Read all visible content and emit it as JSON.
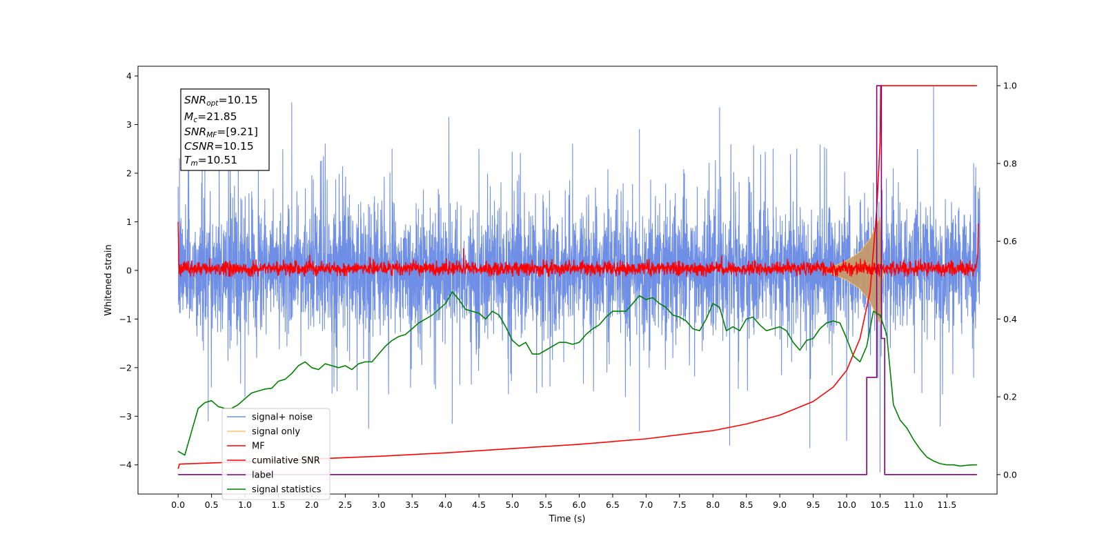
{
  "chart_data": {
    "type": "line",
    "title": "",
    "xlabel": "Time (s)",
    "ylabel": "Whitened strain",
    "xlim": [
      -0.6,
      12.25
    ],
    "ylim": [
      -4.6,
      4.2
    ],
    "y2lim": [
      -0.05,
      1.05
    ],
    "x_ticks": [
      "0.0",
      "0.5",
      "1.0",
      "1.5",
      "2.0",
      "2.5",
      "3.0",
      "3.5",
      "4.0",
      "4.5",
      "5.0",
      "5.5",
      "6.0",
      "6.5",
      "7.0",
      "7.5",
      "8.0",
      "8.5",
      "9.0",
      "9.5",
      "10.0",
      "10.5",
      "11.0",
      "11.5"
    ],
    "y_ticks": [
      "4",
      "3",
      "2",
      "1",
      "0",
      "−1",
      "−2",
      "−3",
      "−4"
    ],
    "y2_ticks": [
      "1.0",
      "0.8",
      "0.6",
      "0.4",
      "0.2",
      "0.0"
    ],
    "grid": false,
    "legend_position": "lower-left",
    "colors": {
      "signal_noise": "#6f8fe6",
      "signal_only": "#f5c469",
      "mf": "#ff0000",
      "cumulative_snr": "#ff0000",
      "label": "#800080",
      "signal_statistics": "#008000",
      "overlap_fill": "#c49a6c"
    },
    "legend": [
      "signal+ noise",
      "signal only",
      "MF",
      "cumilative SNR",
      "label",
      "signal statistics"
    ],
    "annotation": {
      "snr_opt": {
        "symbol": "SNR",
        "sub": "opt",
        "value": "=10.15"
      },
      "mc": {
        "symbol": "M",
        "sub": "c",
        "value": "=21.85"
      },
      "snr_mf": {
        "symbol": "SNR",
        "sub": "MF",
        "value": "=[9.21]"
      },
      "csnr": {
        "symbol": "CSNR",
        "sub": "",
        "value": "=10.15"
      },
      "tm": {
        "symbol": "T",
        "sub": "m",
        "value": "=10.51"
      }
    },
    "series": [
      {
        "name": "signal+ noise",
        "axis": "left",
        "note_shape": "dense noise band",
        "x_range": [
          0.0,
          12.0
        ],
        "band_typical": [
          -1.1,
          1.1
        ],
        "peaks_high": [
          [
            0.02,
            2.3
          ],
          [
            0.4,
            2.5
          ],
          [
            0.9,
            2.4
          ],
          [
            1.2,
            2.7
          ],
          [
            1.7,
            3.45
          ],
          [
            2.2,
            2.6
          ],
          [
            3.2,
            2.5
          ],
          [
            4.05,
            3.15
          ],
          [
            4.5,
            2.5
          ],
          [
            5.9,
            2.6
          ],
          [
            6.9,
            2.9
          ],
          [
            8.1,
            3.35
          ],
          [
            8.9,
            2.5
          ],
          [
            9.7,
            2.5
          ],
          [
            11.3,
            3.8
          ],
          [
            11.9,
            2.2
          ]
        ],
        "peaks_low": [
          [
            0.45,
            -3.1
          ],
          [
            1.0,
            -2.6
          ],
          [
            2.85,
            -3.25
          ],
          [
            4.1,
            -3.15
          ],
          [
            6.9,
            -3.3
          ],
          [
            8.25,
            -3.6
          ],
          [
            9.45,
            -3.65
          ],
          [
            10.0,
            -3.5
          ],
          [
            10.5,
            -4.15
          ],
          [
            11.4,
            -3.2
          ],
          [
            11.9,
            -2.2
          ]
        ]
      },
      {
        "name": "signal only",
        "axis": "left",
        "note_shape": "chirp envelope",
        "envelope": [
          [
            9.6,
            0.0
          ],
          [
            9.8,
            0.08
          ],
          [
            10.0,
            0.2
          ],
          [
            10.2,
            0.38
          ],
          [
            10.35,
            0.65
          ],
          [
            10.45,
            0.95
          ],
          [
            10.5,
            1.1
          ],
          [
            10.53,
            0.2
          ],
          [
            10.56,
            0.0
          ]
        ]
      },
      {
        "name": "MF",
        "axis": "left",
        "note_shape": "noisy band near zero",
        "band_typical": [
          -0.12,
          0.2
        ],
        "start_value": 1.0,
        "end_value": 0.97,
        "spikes": [
          [
            4.27,
            0.45
          ],
          [
            1.97,
            0.32
          ],
          [
            8.13,
            0.3
          ]
        ]
      },
      {
        "name": "cumilative SNR",
        "axis": "right",
        "x": [
          0.0,
          0.02,
          0.5,
          1.0,
          2.0,
          3.0,
          4.0,
          5.0,
          6.0,
          7.0,
          8.0,
          8.5,
          9.0,
          9.5,
          9.8,
          10.0,
          10.2,
          10.35,
          10.45,
          10.5,
          10.51,
          11.0,
          11.5,
          11.95
        ],
        "values": [
          0.015,
          0.027,
          0.03,
          0.033,
          0.04,
          0.047,
          0.056,
          0.067,
          0.078,
          0.092,
          0.113,
          0.13,
          0.153,
          0.188,
          0.225,
          0.268,
          0.35,
          0.47,
          0.68,
          0.85,
          1.0,
          1.0,
          1.0,
          1.0
        ]
      },
      {
        "name": "label",
        "axis": "right",
        "x": [
          0.0,
          10.3,
          10.3,
          10.45,
          10.45,
          10.52,
          10.52,
          10.57,
          10.57,
          11.95
        ],
        "values": [
          0.0,
          0.0,
          0.25,
          0.25,
          1.0,
          1.0,
          0.35,
          0.35,
          0.0,
          0.0
        ]
      },
      {
        "name": "signal statistics",
        "axis": "right",
        "x": [
          0.0,
          0.1,
          0.2,
          0.3,
          0.4,
          0.5,
          0.6,
          0.7,
          0.8,
          0.9,
          1.0,
          1.1,
          1.2,
          1.3,
          1.4,
          1.5,
          1.6,
          1.7,
          1.8,
          1.9,
          2.0,
          2.1,
          2.2,
          2.3,
          2.4,
          2.5,
          2.6,
          2.7,
          2.8,
          2.9,
          3.0,
          3.1,
          3.2,
          3.3,
          3.4,
          3.5,
          3.6,
          3.7,
          3.8,
          3.9,
          4.0,
          4.1,
          4.2,
          4.3,
          4.4,
          4.5,
          4.6,
          4.7,
          4.8,
          4.9,
          5.0,
          5.1,
          5.2,
          5.3,
          5.4,
          5.5,
          5.6,
          5.7,
          5.8,
          5.9,
          6.0,
          6.1,
          6.2,
          6.3,
          6.4,
          6.5,
          6.6,
          6.7,
          6.8,
          6.9,
          7.0,
          7.1,
          7.2,
          7.3,
          7.4,
          7.5,
          7.6,
          7.7,
          7.8,
          7.9,
          8.0,
          8.1,
          8.2,
          8.3,
          8.4,
          8.5,
          8.6,
          8.7,
          8.8,
          8.9,
          9.0,
          9.1,
          9.2,
          9.3,
          9.4,
          9.5,
          9.6,
          9.7,
          9.8,
          9.9,
          10.0,
          10.1,
          10.2,
          10.3,
          10.4,
          10.5,
          10.6,
          10.7,
          10.8,
          10.9,
          11.0,
          11.1,
          11.2,
          11.3,
          11.4,
          11.5,
          11.6,
          11.7,
          11.8,
          11.9,
          11.95
        ],
        "values": [
          0.06,
          0.05,
          0.11,
          0.17,
          0.185,
          0.19,
          0.175,
          0.17,
          0.17,
          0.18,
          0.195,
          0.21,
          0.215,
          0.22,
          0.222,
          0.24,
          0.245,
          0.26,
          0.28,
          0.29,
          0.275,
          0.27,
          0.285,
          0.28,
          0.275,
          0.28,
          0.27,
          0.285,
          0.29,
          0.29,
          0.31,
          0.33,
          0.345,
          0.355,
          0.36,
          0.375,
          0.39,
          0.4,
          0.41,
          0.425,
          0.44,
          0.47,
          0.45,
          0.425,
          0.42,
          0.415,
          0.4,
          0.42,
          0.41,
          0.38,
          0.345,
          0.33,
          0.34,
          0.31,
          0.31,
          0.32,
          0.33,
          0.34,
          0.34,
          0.335,
          0.34,
          0.36,
          0.375,
          0.385,
          0.405,
          0.42,
          0.42,
          0.42,
          0.44,
          0.46,
          0.45,
          0.455,
          0.44,
          0.43,
          0.41,
          0.405,
          0.395,
          0.375,
          0.37,
          0.4,
          0.44,
          0.43,
          0.37,
          0.38,
          0.37,
          0.4,
          0.405,
          0.385,
          0.37,
          0.375,
          0.38,
          0.37,
          0.34,
          0.32,
          0.345,
          0.35,
          0.375,
          0.39,
          0.395,
          0.39,
          0.35,
          0.305,
          0.29,
          0.33,
          0.42,
          0.41,
          0.36,
          0.18,
          0.14,
          0.12,
          0.09,
          0.065,
          0.045,
          0.035,
          0.028,
          0.025,
          0.025,
          0.022,
          0.024,
          0.025,
          0.025
        ]
      }
    ]
  }
}
